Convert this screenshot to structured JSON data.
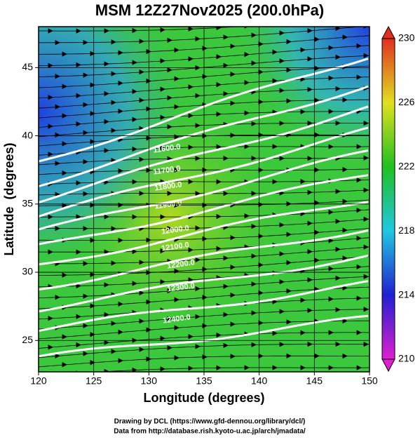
{
  "title": "MSM 12Z27Nov2025 (200.0hPa)",
  "x_axis": {
    "label": "Longitude (degrees)",
    "xlim": [
      120,
      150
    ],
    "xticks": [
      120,
      125,
      130,
      135,
      140,
      145,
      150
    ]
  },
  "y_axis": {
    "label": "Latitude  (degrees)",
    "ylim": [
      22.7,
      48
    ],
    "yticks": [
      25,
      30,
      35,
      40,
      45
    ]
  },
  "colorbar": {
    "lim": [
      210,
      230
    ],
    "ticks": [
      210,
      214,
      218,
      222,
      226,
      230
    ]
  },
  "contour_labels": [
    "11600.0",
    "11700.0",
    "11800.0",
    "11900.0",
    "12000.0",
    "12100.0",
    "12200.0",
    "12300.0",
    "12400.0"
  ],
  "footer": [
    "Drawing by DCL (https://www.gfd-dennou.org/library/dcl/)",
    "Data from http://database.rish.kyoto-u.ac.jp/arch/jmadata/"
  ]
}
